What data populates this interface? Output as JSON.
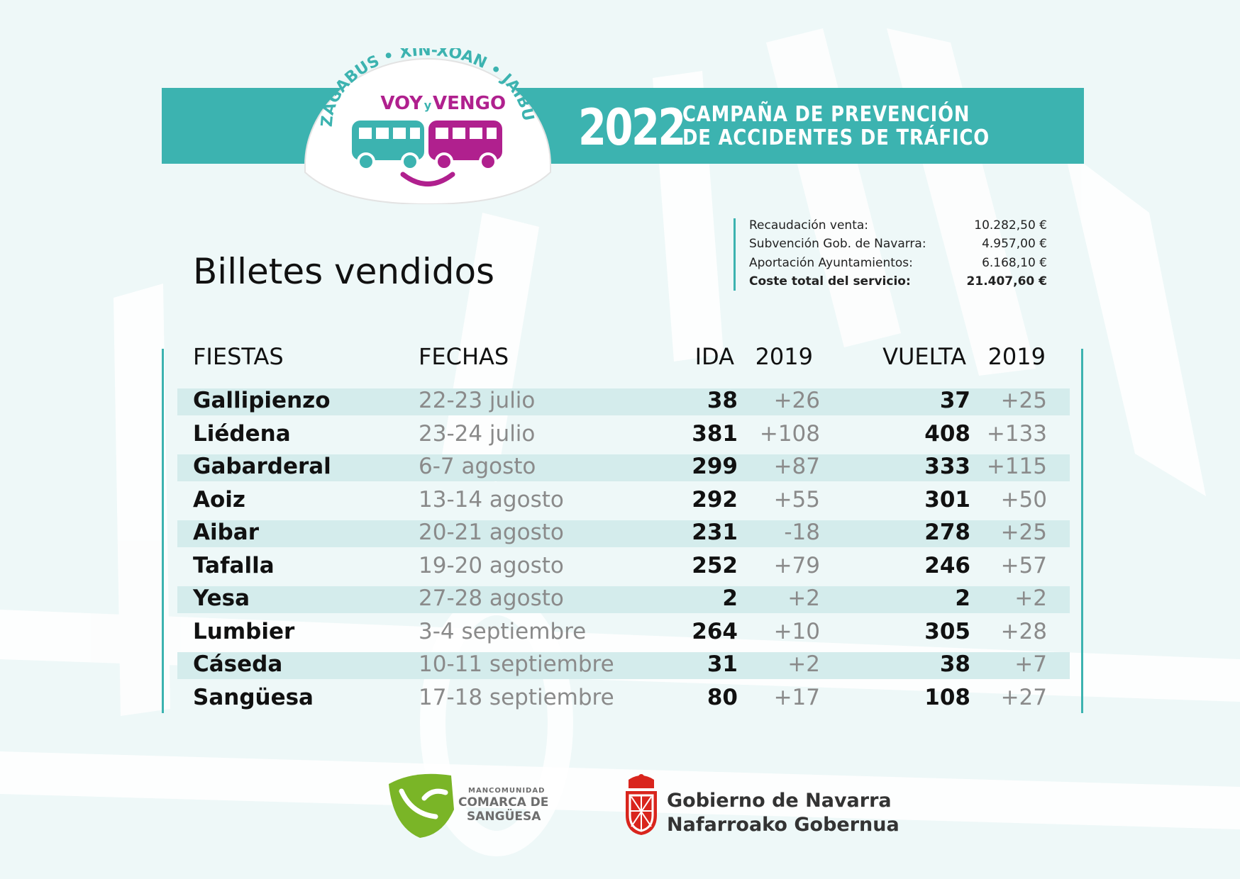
{
  "logo": {
    "arc_text": "IZAGABUS • XIN-XOAN • JAIBUS",
    "voy": "VOY",
    "y": "y",
    "vengo": "VENGO"
  },
  "banner": {
    "year": "2022",
    "line1": "CAMPAÑA DE PREVENCIÓN",
    "line2": "DE ACCIDENTES DE TRÁFICO"
  },
  "summary": [
    {
      "label": "Recaudación venta:",
      "value": "10.282,50 €",
      "bold": false
    },
    {
      "label": "Subvención Gob. de Navarra:",
      "value": "4.957,00 €",
      "bold": false
    },
    {
      "label": "Aportación Ayuntamientos:",
      "value": "6.168,10 €",
      "bold": false
    },
    {
      "label": "Coste total del servicio:",
      "value": "21.407,60 €",
      "bold": true
    }
  ],
  "title": "Billetes vendidos",
  "table": {
    "headers": {
      "fiestas": "FIESTAS",
      "fechas": "FECHAS",
      "ida": "IDA",
      "ida_2019": "2019",
      "vuelta": "VUELTA",
      "vuelta_2019": "2019"
    },
    "rows": [
      {
        "fiesta": "Gallipienzo",
        "fecha": "22-23 julio",
        "ida": "38",
        "ida_2019": "+26",
        "vuelta": "37",
        "vuelta_2019": "+25"
      },
      {
        "fiesta": "Liédena",
        "fecha": "23-24 julio",
        "ida": "381",
        "ida_2019": "+108",
        "vuelta": "408",
        "vuelta_2019": "+133"
      },
      {
        "fiesta": "Gabarderal",
        "fecha": "6-7 agosto",
        "ida": "299",
        "ida_2019": "+87",
        "vuelta": "333",
        "vuelta_2019": "+115"
      },
      {
        "fiesta": "Aoiz",
        "fecha": "13-14 agosto",
        "ida": "292",
        "ida_2019": "+55",
        "vuelta": "301",
        "vuelta_2019": "+50"
      },
      {
        "fiesta": "Aibar",
        "fecha": "20-21 agosto",
        "ida": "231",
        "ida_2019": "-18",
        "vuelta": "278",
        "vuelta_2019": "+25"
      },
      {
        "fiesta": "Tafalla",
        "fecha": "19-20 agosto",
        "ida": "252",
        "ida_2019": "+79",
        "vuelta": "246",
        "vuelta_2019": "+57"
      },
      {
        "fiesta": "Yesa",
        "fecha": "27-28 agosto",
        "ida": "2",
        "ida_2019": "+2",
        "vuelta": "2",
        "vuelta_2019": "+2"
      },
      {
        "fiesta": "Lumbier",
        "fecha": "3-4 septiembre",
        "ida": "264",
        "ida_2019": "+10",
        "vuelta": "305",
        "vuelta_2019": "+28"
      },
      {
        "fiesta": "Cáseda",
        "fecha": "10-11 septiembre",
        "ida": "31",
        "ida_2019": "+2",
        "vuelta": "38",
        "vuelta_2019": "+7"
      },
      {
        "fiesta": "Sangüesa",
        "fecha": "17-18 septiembre",
        "ida": "80",
        "ida_2019": "+17",
        "vuelta": "108",
        "vuelta_2019": "+27"
      }
    ]
  },
  "footer": {
    "mancomunidad_small": "MANCOMUNIDAD",
    "mancomunidad_line1": "COMARCA DE",
    "mancomunidad_line2": "SANGÜESA",
    "gobierno_line1": "Gobierno de Navarra",
    "gobierno_line2": "Nafarroako Gobernua"
  },
  "colors": {
    "teal": "#3cb3b0",
    "magenta": "#b0208e",
    "row_band": "#d4ecec",
    "background": "#eef8f8",
    "navarra_red": "#d9251d",
    "mancomunidad_green": "#7ab527"
  }
}
